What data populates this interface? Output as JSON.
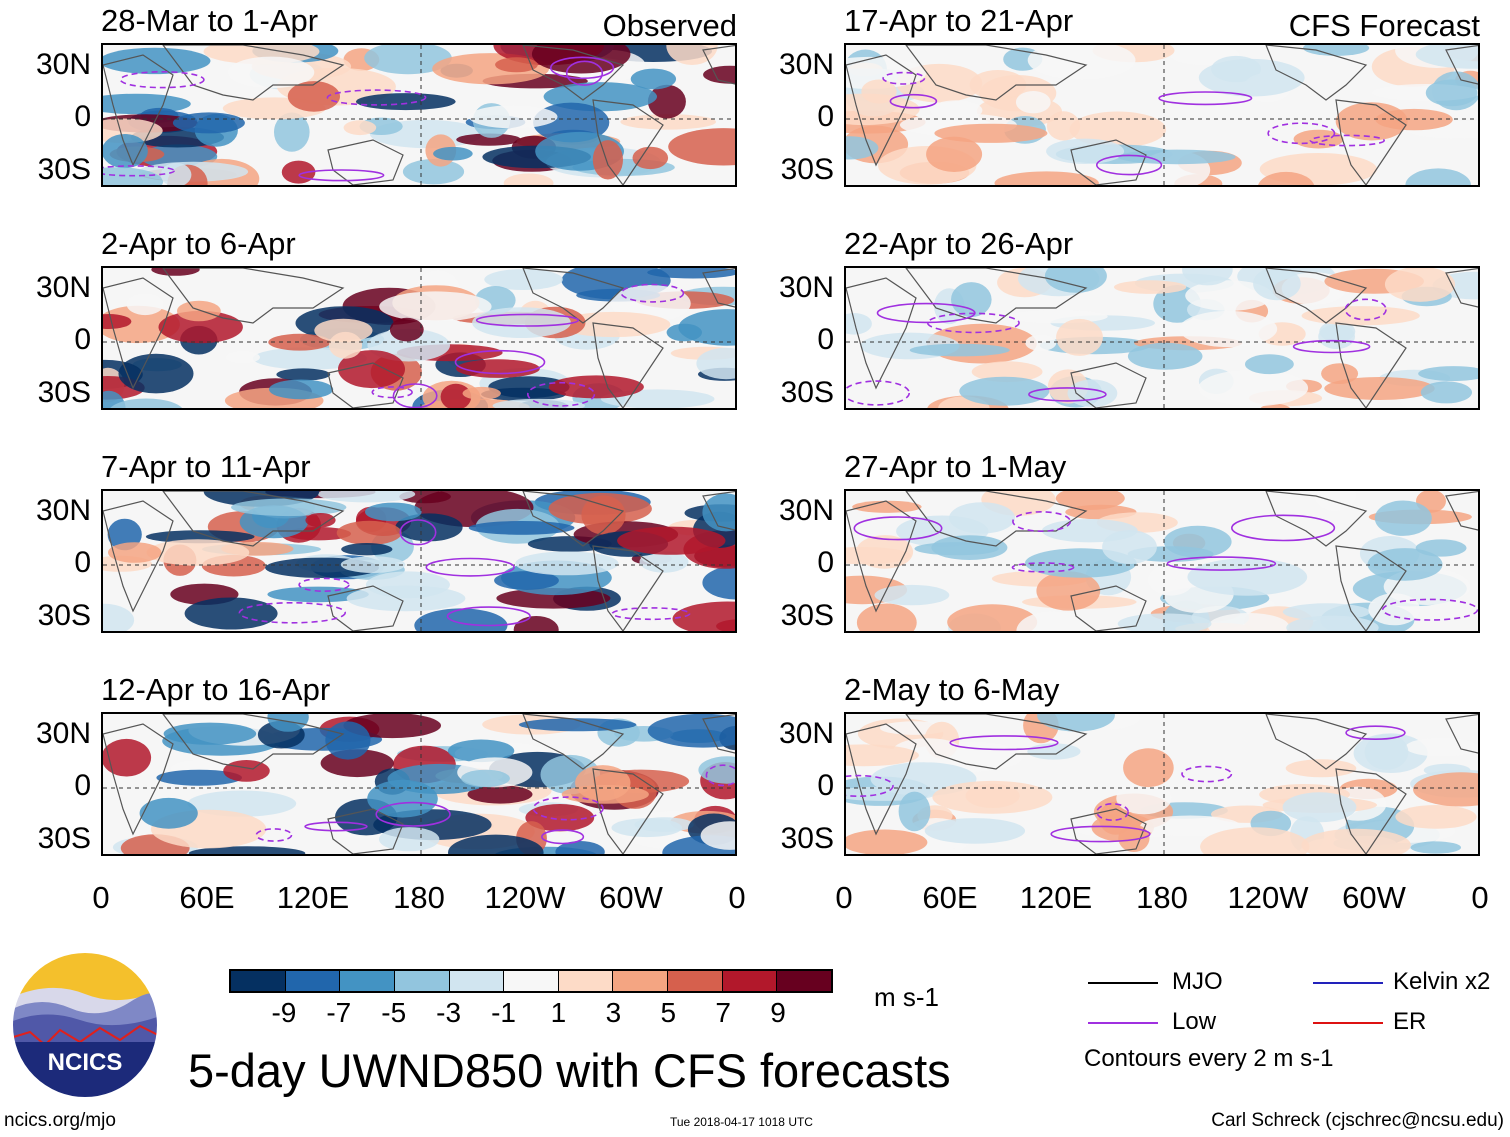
{
  "main_title": "5-day UWND850 with CFS forecasts",
  "units": "m s-1",
  "observed_label": "Observed",
  "forecast_label": "CFS Forecast",
  "lat_labels": [
    "30N",
    "0",
    "30S"
  ],
  "lon_labels": [
    "0",
    "60E",
    "120E",
    "180",
    "120W",
    "60W",
    "0"
  ],
  "panels": [
    {
      "title": "28-Mar to 1-Apr",
      "kind": "observed"
    },
    {
      "title": "2-Apr to 6-Apr",
      "kind": "observed"
    },
    {
      "title": "7-Apr to 11-Apr",
      "kind": "observed"
    },
    {
      "title": "12-Apr to 16-Apr",
      "kind": "observed"
    },
    {
      "title": "17-Apr to 21-Apr",
      "kind": "forecast"
    },
    {
      "title": "22-Apr to 26-Apr",
      "kind": "forecast"
    },
    {
      "title": "27-Apr to 1-May",
      "kind": "forecast"
    },
    {
      "title": "2-May to 6-May",
      "kind": "forecast"
    }
  ],
  "colorbar": {
    "colors": [
      "#053061",
      "#2166ac",
      "#4393c3",
      "#92c5de",
      "#d1e5f0",
      "#f7f7f7",
      "#fddbc7",
      "#f4a582",
      "#d6604d",
      "#b2182b",
      "#67001f"
    ],
    "ticks": [
      "-9",
      "-7",
      "-5",
      "-3",
      "-1",
      "1",
      "3",
      "5",
      "7",
      "9"
    ]
  },
  "legend": {
    "items": [
      {
        "label": "MJO",
        "color": "#000000"
      },
      {
        "label": "Kelvin x2",
        "color": "#2222bb"
      },
      {
        "label": "Low",
        "color": "#a030e0"
      },
      {
        "label": "ER",
        "color": "#dd1111"
      }
    ],
    "contour_note": "Contours every 2 m s-1"
  },
  "logo_text": "NCICS",
  "footer": {
    "url": "ncics.org/mjo",
    "timestamp": "Tue 2018-04-17 1018 UTC",
    "credit": "Carl Schreck (cjschrec@ncsu.edu)"
  }
}
